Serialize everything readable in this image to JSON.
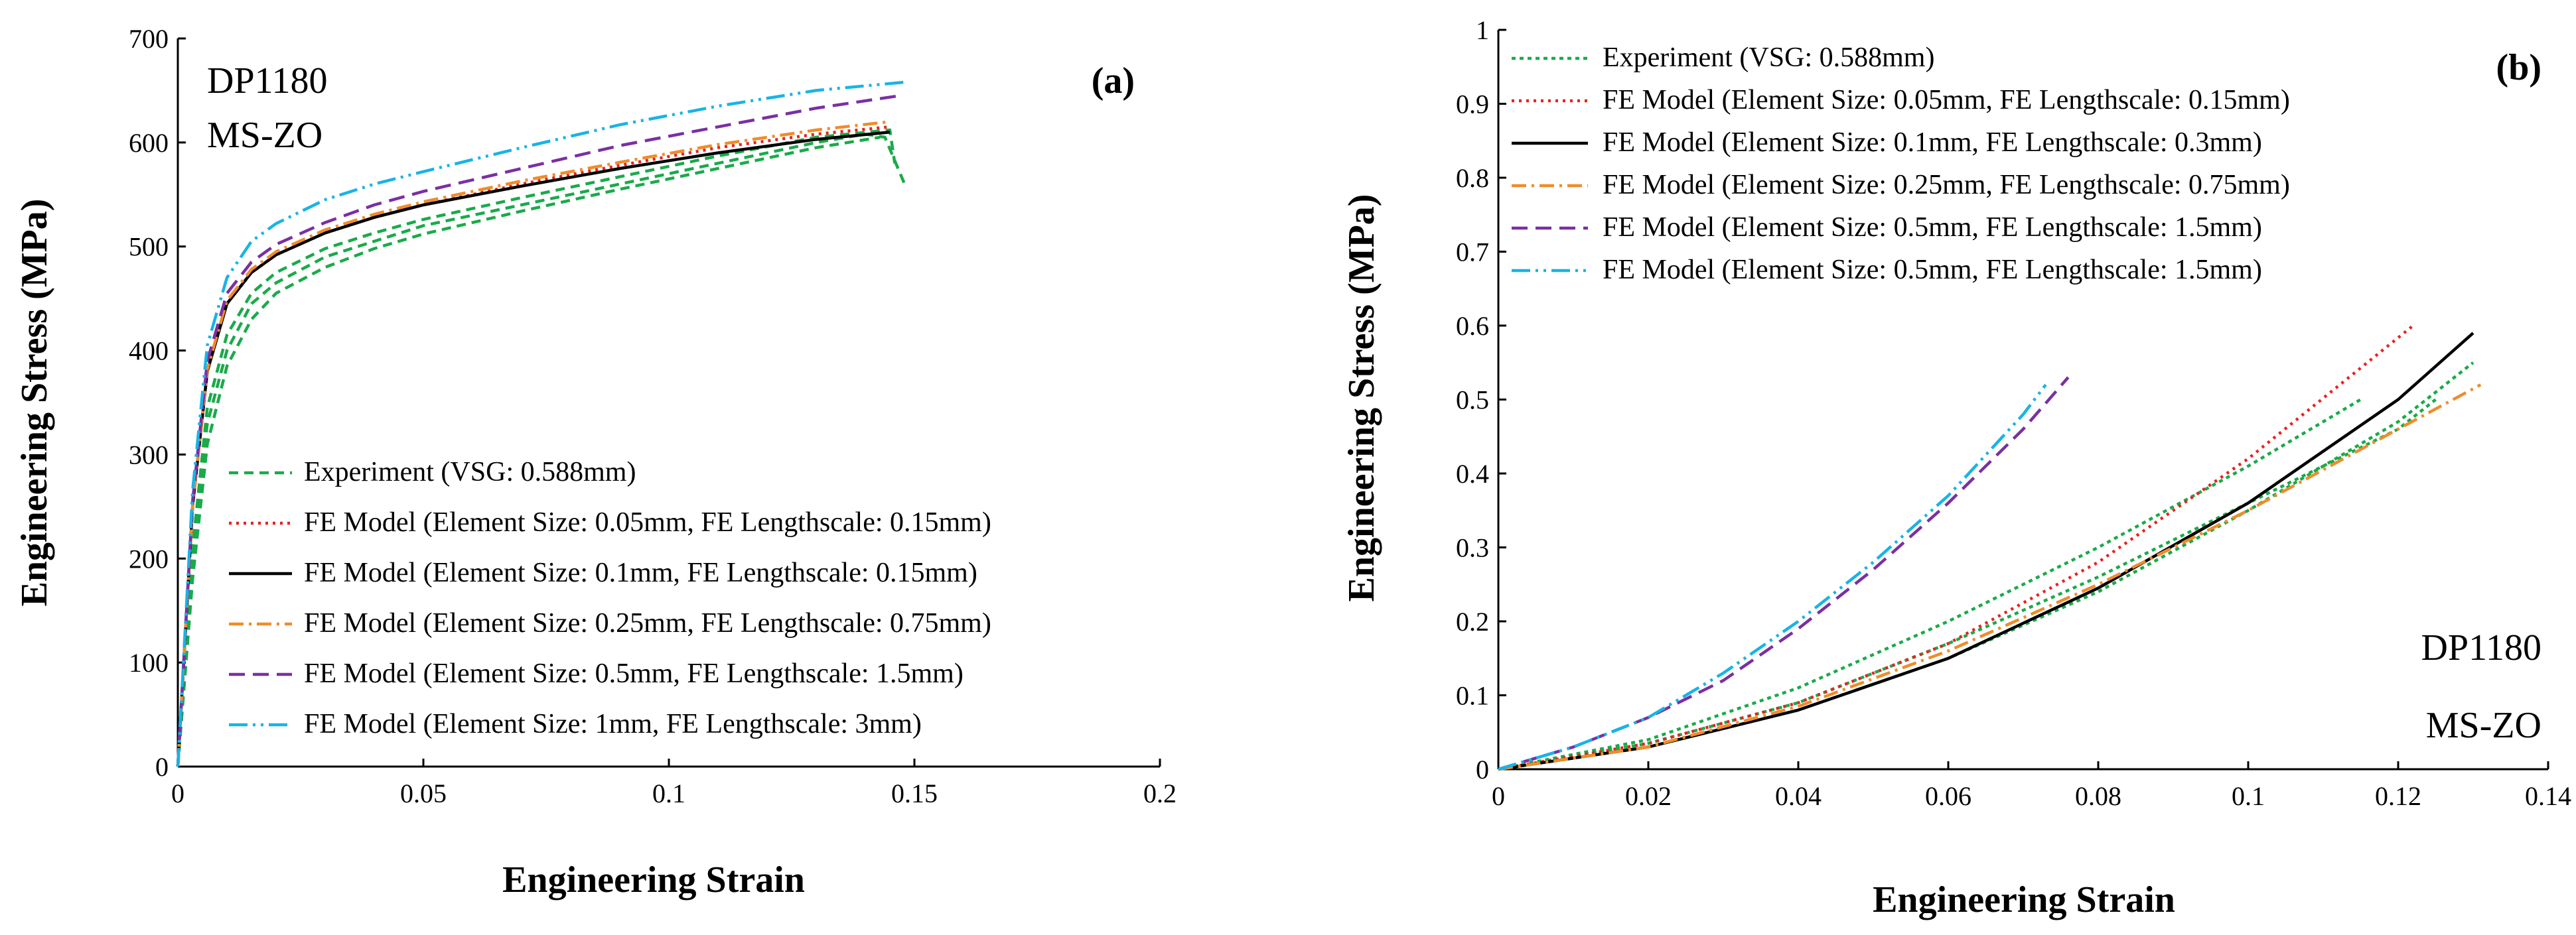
{
  "chart_data": [
    {
      "type": "line",
      "panel_label": "(a)",
      "annotations": [
        "DP1180",
        "MS-ZO"
      ],
      "xlabel": "Engineering Strain",
      "ylabel": "Engineering Stress (MPa)",
      "xlim": [
        0,
        0.2
      ],
      "ylim": [
        0,
        700
      ],
      "xticks": [
        0,
        0.05,
        0.1,
        0.15,
        0.2
      ],
      "xtick_labels": [
        "0",
        "0.05",
        "0.1",
        "0.15",
        "0.2"
      ],
      "yticks": [
        0,
        100,
        200,
        300,
        400,
        500,
        600,
        700
      ],
      "ytick_labels": [
        "0",
        "100",
        "200",
        "300",
        "400",
        "500",
        "600",
        "700"
      ],
      "legend_position": "bottom-left",
      "series": [
        {
          "name": "Experiment (VSG: 0.588mm)",
          "color": "#1aaa4a",
          "dash": "14,9",
          "x": [
            0,
            0.003,
            0.006,
            0.01,
            0.015,
            0.02,
            0.03,
            0.04,
            0.05,
            0.07,
            0.09,
            0.11,
            0.13,
            0.14,
            0.144,
            0.148
          ],
          "y": [
            0,
            200,
            330,
            400,
            445,
            465,
            490,
            505,
            520,
            540,
            560,
            580,
            600,
            608,
            605,
            560
          ]
        },
        {
          "name": "Experiment (VSG: 0.588mm)",
          "color": "#1aaa4a",
          "dash": "14,9",
          "x": [
            0,
            0.003,
            0.006,
            0.01,
            0.015,
            0.02,
            0.03,
            0.04,
            0.05,
            0.07,
            0.09,
            0.11,
            0.13,
            0.143
          ],
          "y": [
            0,
            180,
            310,
            385,
            430,
            455,
            480,
            498,
            512,
            534,
            555,
            575,
            595,
            605
          ]
        },
        {
          "name": "Experiment (VSG: 0.588mm)",
          "color": "#1aaa4a",
          "dash": "14,9",
          "x": [
            0,
            0.003,
            0.006,
            0.01,
            0.015,
            0.02,
            0.03,
            0.04,
            0.05,
            0.07,
            0.09,
            0.11,
            0.13,
            0.145,
            0.146
          ],
          "y": [
            0,
            210,
            345,
            415,
            455,
            475,
            498,
            513,
            526,
            547,
            567,
            587,
            605,
            612,
            580
          ]
        },
        {
          "name": "FE Model (Element Size: 0.05mm, FE Lengthscale: 0.15mm)",
          "color": "#e8221f",
          "dash": "4,7",
          "x": [
            0,
            0.003,
            0.006,
            0.01,
            0.015,
            0.02,
            0.03,
            0.04,
            0.05,
            0.07,
            0.09,
            0.11,
            0.13,
            0.145
          ],
          "y": [
            0,
            250,
            380,
            445,
            475,
            492,
            513,
            528,
            540,
            560,
            578,
            595,
            608,
            615
          ]
        },
        {
          "name": "FE Model (Element Size: 0.1mm, FE Lengthscale: 0.15mm)",
          "color": "#000000",
          "dash": "",
          "x": [
            0,
            0.003,
            0.006,
            0.01,
            0.015,
            0.02,
            0.03,
            0.04,
            0.05,
            0.07,
            0.09,
            0.11,
            0.13,
            0.145
          ],
          "y": [
            0,
            250,
            380,
            445,
            475,
            492,
            513,
            528,
            540,
            558,
            575,
            590,
            603,
            610
          ]
        },
        {
          "name": "FE Model (Element Size: 0.25mm, FE Lengthscale: 0.75mm)",
          "color": "#f08c2a",
          "dash": "22,8,4,8",
          "x": [
            0,
            0.003,
            0.006,
            0.01,
            0.015,
            0.02,
            0.03,
            0.04,
            0.05,
            0.07,
            0.09,
            0.11,
            0.13,
            0.145
          ],
          "y": [
            0,
            250,
            382,
            448,
            478,
            495,
            516,
            531,
            543,
            563,
            581,
            598,
            612,
            620
          ]
        },
        {
          "name": "FE Model (Element Size: 0.5mm, FE Lengthscale: 1.5mm)",
          "color": "#7b2fa3",
          "dash": "24,12",
          "x": [
            0,
            0.003,
            0.006,
            0.01,
            0.015,
            0.02,
            0.03,
            0.04,
            0.05,
            0.07,
            0.09,
            0.11,
            0.13,
            0.147
          ],
          "y": [
            0,
            255,
            390,
            455,
            485,
            502,
            523,
            540,
            553,
            575,
            597,
            615,
            633,
            645
          ]
        },
        {
          "name": "FE Model (Element Size: 1mm, FE Lengthscale: 3mm)",
          "color": "#18b4e6",
          "dash": "28,8,4,8,4,8",
          "x": [
            0,
            0.003,
            0.006,
            0.01,
            0.015,
            0.02,
            0.03,
            0.04,
            0.05,
            0.07,
            0.09,
            0.11,
            0.13,
            0.148
          ],
          "y": [
            0,
            265,
            405,
            470,
            505,
            522,
            545,
            560,
            572,
            595,
            617,
            635,
            650,
            658
          ]
        }
      ]
    },
    {
      "type": "line",
      "panel_label": "(b)",
      "annotations": [
        "DP1180",
        "MS-ZO"
      ],
      "xlabel": "Engineering Strain",
      "ylabel": "Engineering Stress (MPa)",
      "xlim": [
        0,
        0.14
      ],
      "ylim": [
        0,
        1
      ],
      "xticks": [
        0,
        0.02,
        0.04,
        0.06,
        0.08,
        0.1,
        0.12,
        0.14
      ],
      "xtick_labels": [
        "0",
        "0.02",
        "0.04",
        "0.06",
        "0.08",
        "0.1",
        "0.12",
        "0.14"
      ],
      "yticks": [
        0,
        0.1,
        0.2,
        0.3,
        0.4,
        0.5,
        0.6,
        0.7,
        0.8,
        0.9,
        1
      ],
      "ytick_labels": [
        "0",
        "0.1",
        "0.2",
        "0.3",
        "0.4",
        "0.5",
        "0.6",
        "0.7",
        "0.8",
        "0.9",
        "1"
      ],
      "legend_position": "top-left",
      "series": [
        {
          "name": "Experiment (VSG: 0.588mm)",
          "color": "#1aaa4a",
          "dash": "6,6",
          "x": [
            0,
            0.02,
            0.04,
            0.06,
            0.08,
            0.1,
            0.115
          ],
          "y": [
            0,
            0.04,
            0.11,
            0.2,
            0.3,
            0.41,
            0.5
          ]
        },
        {
          "name": "Experiment (VSG: 0.588mm)",
          "color": "#1aaa4a",
          "dash": "6,6",
          "x": [
            0,
            0.02,
            0.04,
            0.06,
            0.08,
            0.1,
            0.12,
            0.13
          ],
          "y": [
            0,
            0.03,
            0.08,
            0.15,
            0.24,
            0.35,
            0.47,
            0.55
          ]
        },
        {
          "name": "Experiment (VSG: 0.588mm)",
          "color": "#1aaa4a",
          "dash": "6,6",
          "x": [
            0,
            0.02,
            0.04,
            0.06,
            0.08,
            0.1,
            0.12,
            0.125
          ],
          "y": [
            0,
            0.035,
            0.09,
            0.17,
            0.26,
            0.36,
            0.46,
            0.5
          ]
        },
        {
          "name": "FE Model (Element Size: 0.05mm, FE Lengthscale: 0.15mm)",
          "color": "#e8221f",
          "dash": "4,7",
          "x": [
            0,
            0.02,
            0.04,
            0.06,
            0.08,
            0.1,
            0.122
          ],
          "y": [
            0,
            0.035,
            0.09,
            0.17,
            0.28,
            0.42,
            0.6
          ]
        },
        {
          "name": "FE Model (Element Size: 0.1mm, FE Lengthscale: 0.3mm)",
          "color": "#000000",
          "dash": "",
          "x": [
            0,
            0.02,
            0.04,
            0.06,
            0.08,
            0.1,
            0.12,
            0.13
          ],
          "y": [
            0,
            0.03,
            0.08,
            0.15,
            0.245,
            0.36,
            0.5,
            0.59
          ]
        },
        {
          "name": "FE Model (Element Size: 0.25mm, FE Lengthscale: 0.75mm)",
          "color": "#f08c2a",
          "dash": "22,8,4,8",
          "x": [
            0,
            0.02,
            0.04,
            0.06,
            0.08,
            0.1,
            0.12,
            0.131
          ],
          "y": [
            0,
            0.03,
            0.085,
            0.16,
            0.25,
            0.35,
            0.46,
            0.52
          ]
        },
        {
          "name": "FE Model (Element Size: 0.5mm, FE Lengthscale: 1.5mm)",
          "color": "#7b2fa3",
          "dash": "24,12",
          "x": [
            0,
            0.01,
            0.02,
            0.03,
            0.04,
            0.05,
            0.06,
            0.07,
            0.076
          ],
          "y": [
            0,
            0.03,
            0.07,
            0.12,
            0.19,
            0.27,
            0.36,
            0.46,
            0.53
          ]
        },
        {
          "name": "FE Model (Element Size: 0.5mm, FE Lengthscale: 1.5mm)",
          "color": "#18b4e6",
          "dash": "28,8,4,8,4,8",
          "x": [
            0,
            0.01,
            0.02,
            0.03,
            0.04,
            0.05,
            0.06,
            0.07,
            0.073
          ],
          "y": [
            0,
            0.03,
            0.07,
            0.13,
            0.2,
            0.28,
            0.37,
            0.48,
            0.52
          ]
        }
      ]
    }
  ]
}
